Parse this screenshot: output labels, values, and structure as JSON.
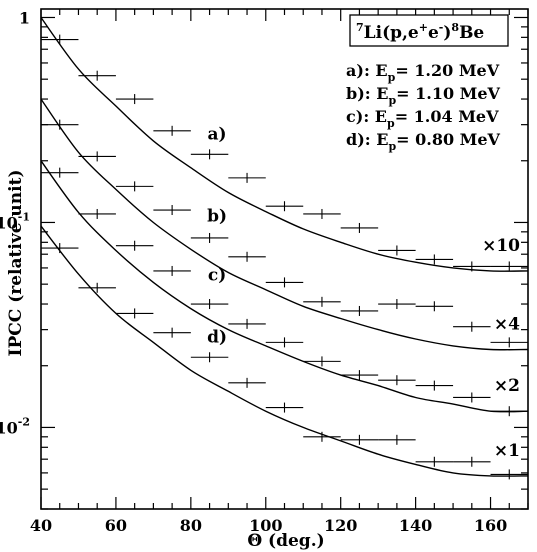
{
  "chart_data": {
    "type": "scatter",
    "xlabel": "Θ (deg.)",
    "ylabel": "IPCC (relative unit)",
    "xlim": [
      40,
      170
    ],
    "ylim": [
      0.004,
      1.1
    ],
    "yscale": "log",
    "x_ticks": [
      40,
      60,
      80,
      100,
      120,
      140,
      160
    ],
    "y_ticks": [
      {
        "value": 0.01,
        "base": "10",
        "exp": "-2"
      },
      {
        "value": 0.1,
        "base": "10",
        "exp": "-1"
      },
      {
        "value": 1,
        "base": "1",
        "exp": ""
      }
    ],
    "legend": {
      "reaction": {
        "pre": "7",
        "a": "Li(p,e",
        "b": "+",
        "c": "e",
        "d": "-",
        "e": ")",
        "f": "8",
        "g": "Be"
      },
      "position": "top-right",
      "lines": [
        {
          "tag": "a): E",
          "sub": "p",
          "rest": "= 1.20 MeV"
        },
        {
          "tag": "b): E",
          "sub": "p",
          "rest": "= 1.10 MeV"
        },
        {
          "tag": "c): E",
          "sub": "p",
          "rest": "= 1.04 MeV"
        },
        {
          "tag": "d): E",
          "sub": "p",
          "rest": "= 0.80 MeV"
        }
      ]
    },
    "series": [
      {
        "name": "a)",
        "scale": "×10",
        "x": [
          45,
          55,
          65,
          75,
          85,
          95,
          105,
          115,
          125,
          135,
          145,
          155,
          165
        ],
        "y": [
          0.78,
          0.52,
          0.4,
          0.28,
          0.215,
          0.165,
          0.12,
          0.11,
          0.094,
          0.073,
          0.066,
          0.061,
          0.061
        ],
        "curve_y": [
          1.0,
          0.56,
          0.37,
          0.25,
          0.185,
          0.14,
          0.113,
          0.093,
          0.08,
          0.07,
          0.064,
          0.06,
          0.058,
          0.058
        ]
      },
      {
        "name": "b)",
        "scale": "×4",
        "x": [
          45,
          55,
          65,
          75,
          85,
          95,
          105,
          115,
          125,
          135,
          145,
          155,
          165
        ],
        "y": [
          0.3,
          0.21,
          0.15,
          0.115,
          0.084,
          0.068,
          0.051,
          0.041,
          0.037,
          0.04,
          0.039,
          0.031,
          0.026
        ],
        "curve_y": [
          0.4,
          0.22,
          0.145,
          0.1,
          0.074,
          0.057,
          0.047,
          0.039,
          0.034,
          0.03,
          0.027,
          0.025,
          0.024,
          0.024
        ]
      },
      {
        "name": "c)",
        "scale": "×2",
        "x": [
          45,
          55,
          65,
          75,
          85,
          95,
          105,
          115,
          125,
          135,
          145,
          155,
          165
        ],
        "y": [
          0.175,
          0.11,
          0.077,
          0.058,
          0.04,
          0.032,
          0.026,
          0.021,
          0.018,
          0.017,
          0.016,
          0.014,
          0.012
        ],
        "curve_y": [
          0.2,
          0.112,
          0.073,
          0.051,
          0.038,
          0.03,
          0.025,
          0.021,
          0.018,
          0.016,
          0.014,
          0.013,
          0.012,
          0.012
        ]
      },
      {
        "name": "d)",
        "scale": "×1",
        "x": [
          45,
          55,
          65,
          75,
          85,
          95,
          105,
          115,
          125,
          135,
          145,
          155,
          165
        ],
        "y": [
          0.075,
          0.048,
          0.036,
          0.029,
          0.022,
          0.0165,
          0.0125,
          0.009,
          0.0087,
          0.0087,
          0.0068,
          0.0068,
          0.0059
        ],
        "curve_y": [
          0.096,
          0.056,
          0.036,
          0.026,
          0.019,
          0.015,
          0.012,
          0.01,
          0.0086,
          0.0074,
          0.0066,
          0.006,
          0.0058,
          0.0058
        ]
      }
    ],
    "curve_x": [
      40,
      50,
      60,
      70,
      80,
      90,
      100,
      110,
      120,
      130,
      140,
      150,
      160,
      170
    ],
    "grid": false
  }
}
